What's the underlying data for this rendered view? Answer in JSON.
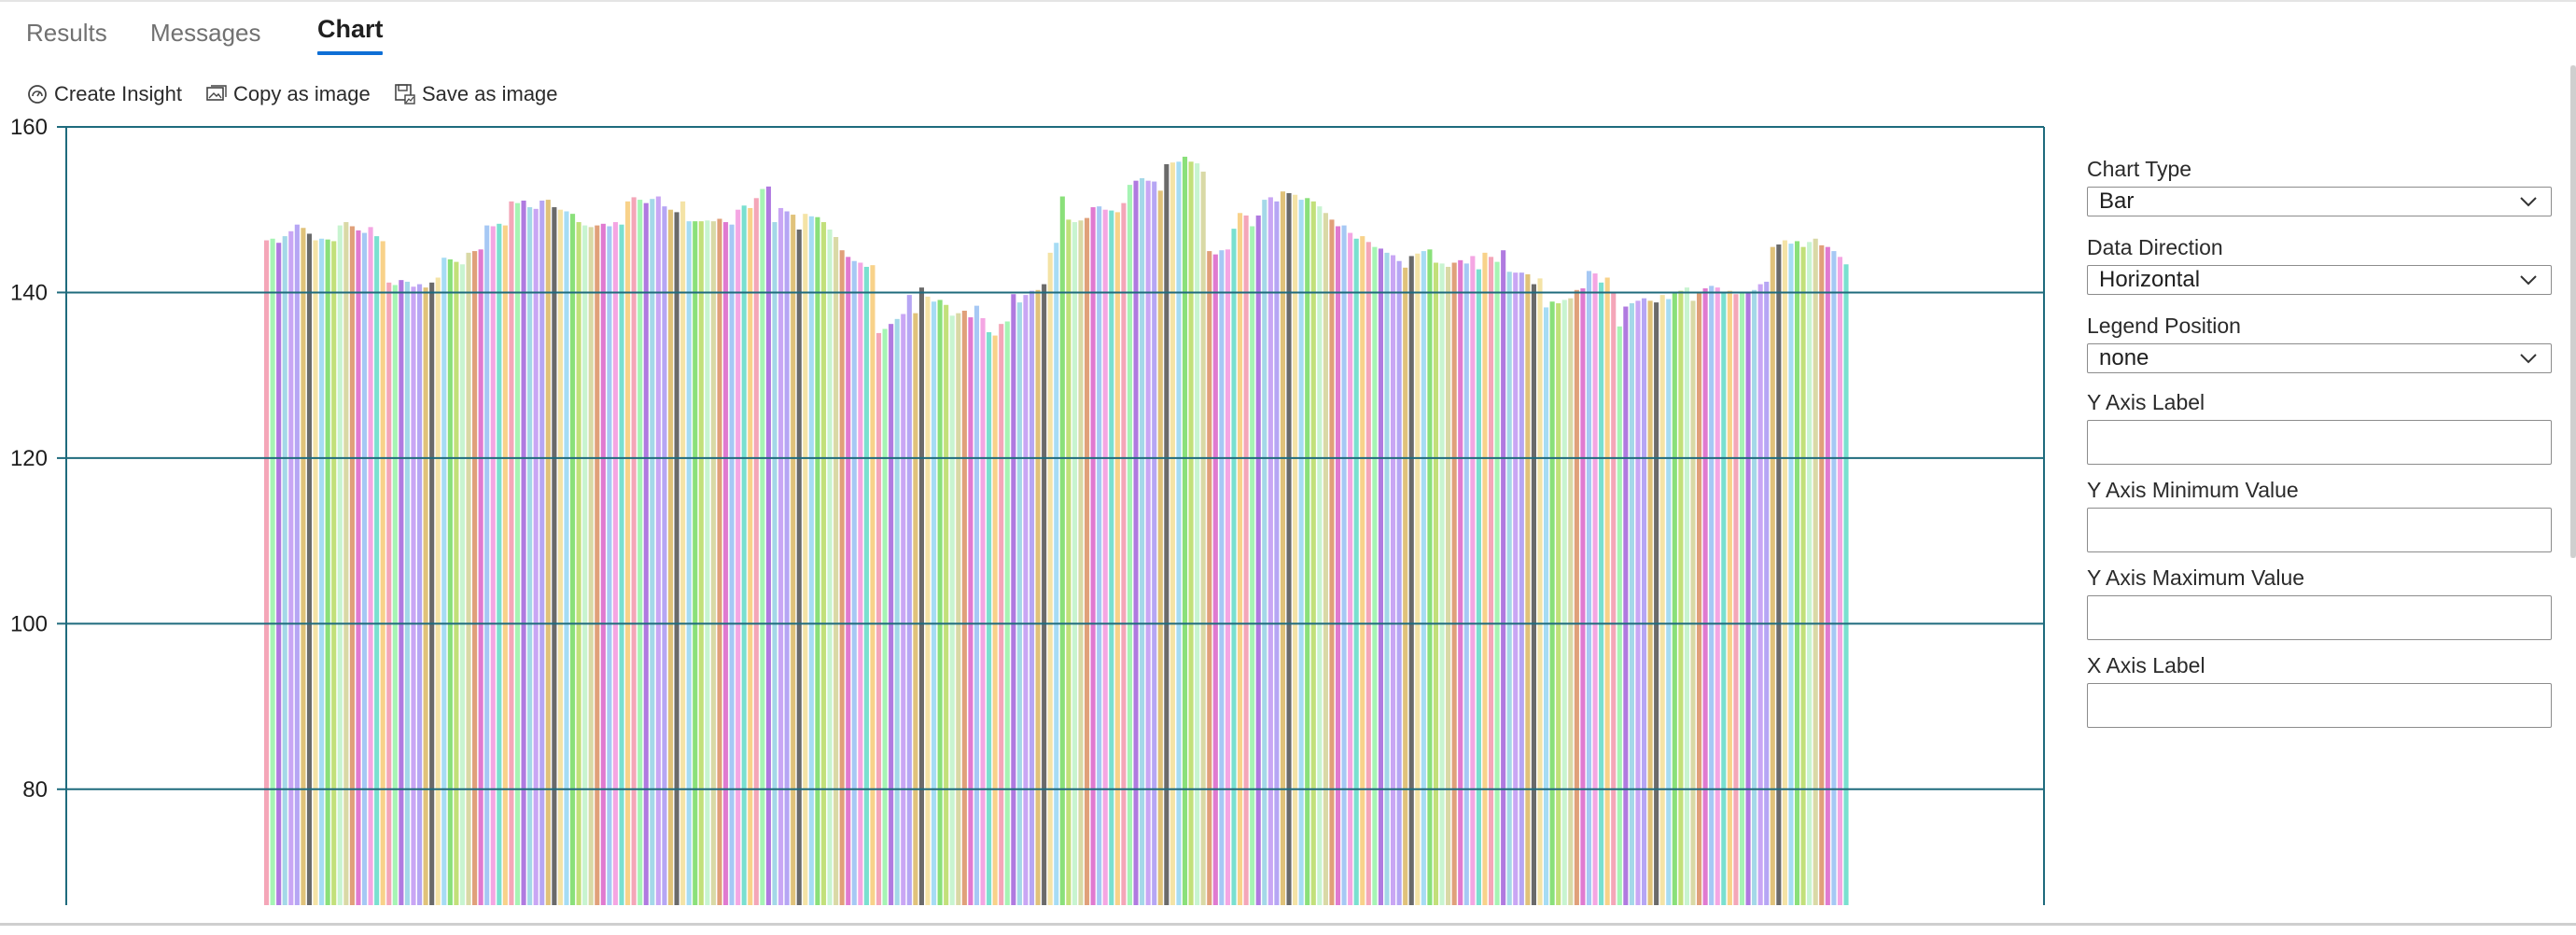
{
  "tabs": [
    {
      "label": "Results",
      "active": false
    },
    {
      "label": "Messages",
      "active": false
    },
    {
      "label": "Chart",
      "active": true
    }
  ],
  "toolbar": {
    "create_insight": "Create Insight",
    "copy_image": "Copy as image",
    "save_image": "Save as image"
  },
  "chart_data": {
    "type": "bar",
    "orientation": "vertical",
    "title": "",
    "xlabel": "",
    "ylabel": "",
    "ylim": [
      66,
      160
    ],
    "yticks": [
      80,
      100,
      120,
      140,
      160
    ],
    "legend": "none",
    "grid": true,
    "values": [
      146.3,
      146.5,
      146.0,
      146.8,
      147.4,
      148.2,
      147.8,
      147.1,
      146.3,
      146.5,
      146.4,
      146.2,
      148.1,
      148.5,
      148.0,
      147.5,
      147.2,
      147.9,
      146.8,
      146.2,
      141.2,
      140.9,
      141.5,
      141.3,
      140.7,
      141.0,
      140.6,
      141.2,
      141.8,
      144.2,
      144.0,
      143.7,
      143.4,
      144.8,
      145.0,
      145.2,
      148.1,
      148.0,
      148.3,
      148.1,
      151.0,
      150.8,
      151.1,
      150.3,
      150.1,
      151.1,
      151.2,
      150.3,
      150.0,
      149.8,
      149.5,
      148.5,
      148.1,
      147.9,
      148.1,
      148.3,
      148.0,
      148.5,
      148.2,
      151.0,
      151.5,
      151.2,
      150.8,
      151.3,
      151.6,
      150.4,
      150.0,
      149.7,
      151.0,
      148.6,
      148.6,
      148.6,
      148.7,
      148.6,
      148.9,
      148.5,
      148.2,
      150.0,
      150.5,
      150.2,
      151.4,
      152.5,
      152.8,
      148.5,
      150.2,
      149.8,
      149.4,
      147.6,
      149.5,
      149.2,
      149.1,
      148.5,
      147.6,
      146.7,
      145.1,
      144.3,
      143.8,
      143.6,
      143.1,
      143.3,
      135.1,
      135.6,
      136.2,
      136.8,
      137.4,
      139.7,
      137.5,
      140.6,
      139.5,
      138.9,
      139.1,
      138.5,
      137.2,
      137.5,
      137.8,
      137.0,
      138.4,
      136.9,
      135.2,
      134.8,
      136.2,
      136.5,
      139.8,
      138.8,
      139.7,
      140.2,
      140.3,
      141.0,
      144.8,
      146.0,
      151.6,
      148.8,
      148.5,
      148.7,
      149.0,
      150.3,
      150.4,
      150.0,
      149.9,
      149.7,
      150.8,
      153.0,
      153.5,
      153.8,
      153.5,
      153.4,
      152.3,
      155.5,
      155.7,
      155.8,
      156.4,
      155.8,
      155.6,
      154.6,
      145.0,
      144.6,
      145.1,
      145.2,
      147.7,
      149.6,
      149.3,
      148.0,
      149.3,
      151.2,
      151.5,
      151.0,
      152.2,
      152.0,
      151.8,
      151.2,
      151.4,
      151.0,
      150.4,
      149.6,
      148.8,
      148.0,
      148.1,
      147.2,
      146.5,
      146.8,
      146.1,
      145.5,
      145.3,
      144.8,
      144.5,
      143.8,
      143.0,
      144.4,
      144.7,
      145.0,
      145.2,
      143.6,
      143.5,
      143.1,
      143.6,
      143.9,
      143.5,
      144.4,
      142.8,
      144.8,
      144.3,
      143.7,
      145.1,
      142.5,
      142.4,
      142.4,
      142.2,
      141.0,
      141.7,
      138.2,
      138.9,
      138.7,
      139.1,
      139.3,
      140.3,
      140.5,
      142.6,
      142.3,
      141.2,
      141.8,
      140.1,
      135.9,
      138.3,
      138.7,
      139.0,
      139.3,
      139.0,
      138.8,
      139.7,
      139.2,
      139.9,
      140.2,
      140.6,
      139.0,
      140.0,
      140.5,
      140.8,
      140.6,
      140.0,
      140.2,
      139.8,
      139.9,
      140.1,
      140.3,
      141.0,
      141.3,
      145.5,
      145.8,
      146.3,
      145.9,
      146.2,
      145.5,
      146.1,
      146.5,
      145.7,
      145.5,
      145.0,
      144.3,
      143.4
    ]
  },
  "options": {
    "chart_type_label": "Chart Type",
    "chart_type_value": "Bar",
    "data_direction_label": "Data Direction",
    "data_direction_value": "Horizontal",
    "legend_position_label": "Legend Position",
    "legend_position_value": "none",
    "y_axis_label": "Y Axis Label",
    "y_axis_min_label": "Y Axis Minimum Value",
    "y_axis_max_label": "Y Axis Maximum Value",
    "x_axis_label": "X Axis Label",
    "y_axis_label_value": "",
    "y_axis_min_value": "",
    "y_axis_max_value": "",
    "x_axis_label_value": ""
  }
}
